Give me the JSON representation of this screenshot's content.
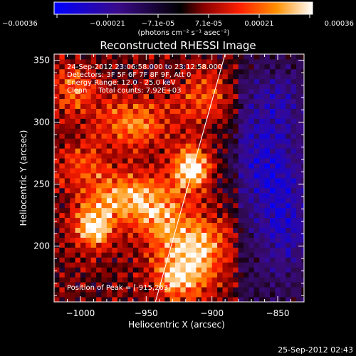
{
  "chart_data": {
    "type": "heatmap",
    "title": "Reconstructed RHESSI Image",
    "xlabel": "Heliocentric X (arcsec)",
    "ylabel": "Heliocentric Y (arcsec)",
    "xlim": [
      -1020,
      -830
    ],
    "ylim": [
      155,
      355
    ],
    "x_ticks": [
      -1000,
      -950,
      -900,
      -850
    ],
    "y_ticks": [
      200,
      250,
      300,
      350
    ],
    "colorbar": {
      "ticks": [
        "-0.00036",
        "-0.00021",
        "-7.1e-05",
        "7.1e-05",
        "0.00021",
        "0.00036"
      ],
      "unit_label": "(photons cm⁻² s⁻¹ asec⁻²)",
      "range": [
        -0.00036,
        0.00036
      ]
    },
    "annotations": [
      "24-Sep-2012 23:06:58.000 to 23:12:58.000",
      "Detectors: 3F 5F 6F 7F 8F 9F, Att 0",
      "Energy Range: 12.0 - 25.0 keV",
      "Clean     Total counts: 7.92E+03",
      "Position of Peak = [-915,263]"
    ],
    "peak": {
      "x": -915,
      "y": 263
    },
    "blobs": [
      {
        "x": -915,
        "y": 263,
        "amp": 1.0,
        "sx": 10,
        "sy": 12
      },
      {
        "x": -990,
        "y": 215,
        "amp": 0.85,
        "sx": 10,
        "sy": 12
      },
      {
        "x": -970,
        "y": 240,
        "amp": 0.65,
        "sx": 18,
        "sy": 14
      },
      {
        "x": -940,
        "y": 225,
        "amp": 0.6,
        "sx": 14,
        "sy": 20
      },
      {
        "x": -910,
        "y": 200,
        "amp": 0.7,
        "sx": 16,
        "sy": 18
      },
      {
        "x": -960,
        "y": 300,
        "amp": 0.55,
        "sx": 20,
        "sy": 14
      },
      {
        "x": -925,
        "y": 175,
        "amp": 0.65,
        "sx": 14,
        "sy": 14
      },
      {
        "x": -905,
        "y": 320,
        "amp": 0.45,
        "sx": 14,
        "sy": 14
      },
      {
        "x": -1005,
        "y": 325,
        "amp": 0.45,
        "sx": 12,
        "sy": 14
      },
      {
        "x": -1000,
        "y": 265,
        "amp": 0.35,
        "sx": 14,
        "sy": 14
      },
      {
        "x": -860,
        "y": 270,
        "amp": -0.55,
        "sx": 20,
        "sy": 30
      },
      {
        "x": -845,
        "y": 215,
        "amp": -0.5,
        "sx": 16,
        "sy": 30
      },
      {
        "x": -850,
        "y": 320,
        "amp": -0.35,
        "sx": 18,
        "sy": 16
      }
    ],
    "limb_line": {
      "x1": -943,
      "y1": 155,
      "x2": -890,
      "y2": 355
    }
  },
  "footer": {
    "timestamp": "25-Sep-2012 02:43"
  }
}
